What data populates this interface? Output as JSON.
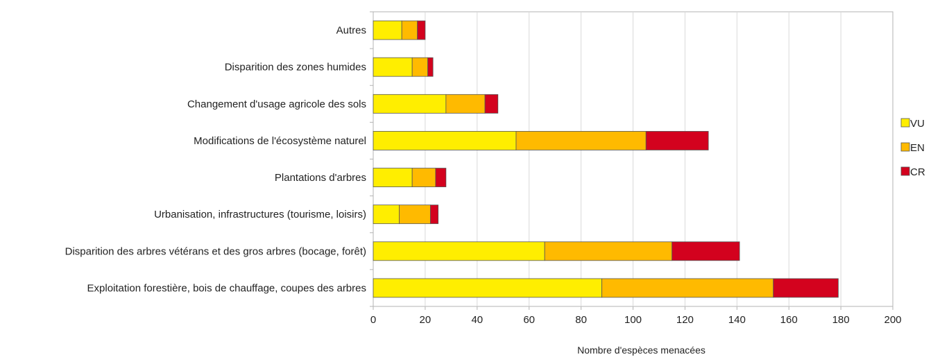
{
  "chart_data": {
    "type": "bar",
    "orientation": "horizontal",
    "stacked": true,
    "categories": [
      "Autres",
      "Disparition des zones humides",
      "Changement d'usage agricole des sols",
      "Modifications de l'écosystème naturel",
      "Plantations d'arbres",
      "Urbanisation, infrastructures (tourisme, loisirs)",
      "Disparition des arbres vétérans et des gros arbres (bocage, forêt)",
      "Exploitation forestière, bois de chauffage, coupes des arbres"
    ],
    "series": [
      {
        "name": "VU",
        "color": "#ffee00",
        "values": [
          11,
          15,
          28,
          55,
          15,
          10,
          66,
          88
        ]
      },
      {
        "name": "EN",
        "color": "#ffba00",
        "values": [
          6,
          6,
          15,
          50,
          9,
          12,
          49,
          66
        ]
      },
      {
        "name": "CR",
        "color": "#d3021e",
        "values": [
          3,
          2,
          5,
          24,
          4,
          3,
          26,
          25
        ]
      }
    ],
    "xlim": [
      0,
      200
    ],
    "xticks": [
      "0",
      "20",
      "40",
      "60",
      "80",
      "100",
      "120",
      "140",
      "160",
      "180",
      "200"
    ],
    "xlabel": "Nombre d'espèces menacées",
    "ylabel": "",
    "title": "",
    "grid": true,
    "legend_position": "right"
  }
}
